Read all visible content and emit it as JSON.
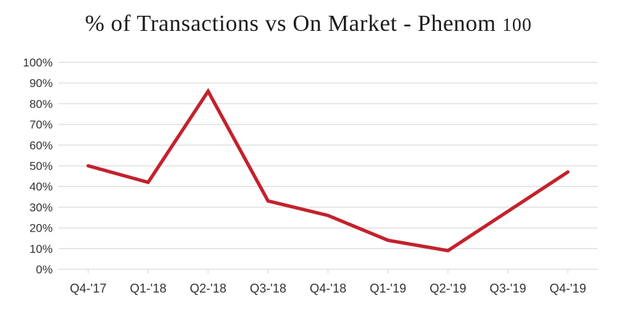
{
  "header": {
    "title_main": "% of Transactions vs On Market - Phenom",
    "title_figure": "100"
  },
  "chart_data": {
    "type": "line",
    "title": "% of Transactions vs On Market - Phenom 100",
    "categories": [
      "Q4-'17",
      "Q1-'18",
      "Q2-'18",
      "Q3-'18",
      "Q4-'18",
      "Q1-'19",
      "Q2-'19",
      "Q3-'19",
      "Q4-'19"
    ],
    "values": [
      50,
      42,
      86,
      33,
      26,
      14,
      9,
      28,
      47
    ],
    "y_unit": "%",
    "ylim": [
      0,
      100
    ],
    "y_tick_step": 10,
    "y_tick_labels": [
      "0%",
      "10%",
      "20%",
      "30%",
      "40%",
      "50%",
      "60%",
      "70%",
      "80%",
      "90%",
      "100%"
    ],
    "xlabel": "",
    "ylabel": "",
    "grid": true,
    "legend": "none",
    "style": {
      "line_color": "#c2222d",
      "gridline_color": "#e0e0e0",
      "label_color": "#333333",
      "title_color": "#1c1c1c",
      "background": "#ffffff"
    }
  }
}
